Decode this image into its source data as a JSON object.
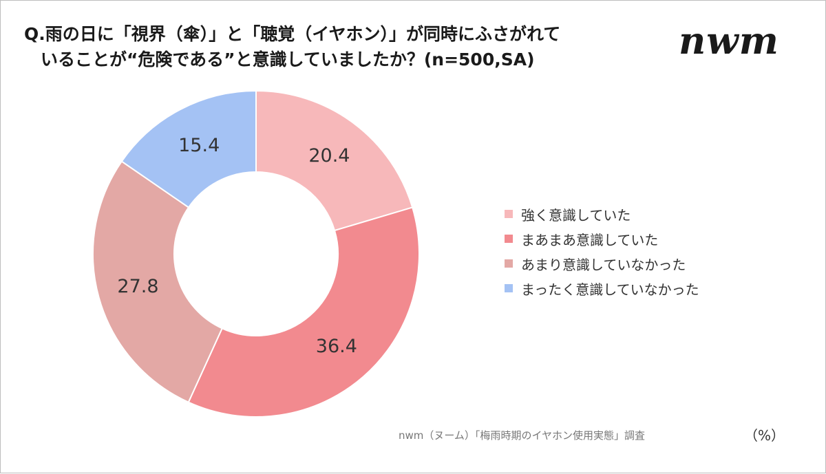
{
  "title": {
    "line1": "Q.雨の日に「視界（傘）」と「聴覚（イヤホン）」が同時にふさがれて",
    "line2": "いることが“危険である”と意識していましたか？(n=500,SA)"
  },
  "logo": "nwm",
  "source": "nwm（ヌーム）「梅雨時期のイヤホン使用実態」調査",
  "unit": "（%）",
  "chart_data": {
    "type": "pie",
    "variant": "donut",
    "categories": [
      "強く意識していた",
      "まあまあ意識していた",
      "あまり意識していなかった",
      "まったく意識していなかった"
    ],
    "values": [
      20.4,
      36.4,
      27.8,
      15.4
    ],
    "colors": [
      "#f7b8ba",
      "#f28a8f",
      "#e3a8a5",
      "#a4c2f4"
    ],
    "legend_position": "right",
    "start": "12 o'clock, clockwise"
  }
}
